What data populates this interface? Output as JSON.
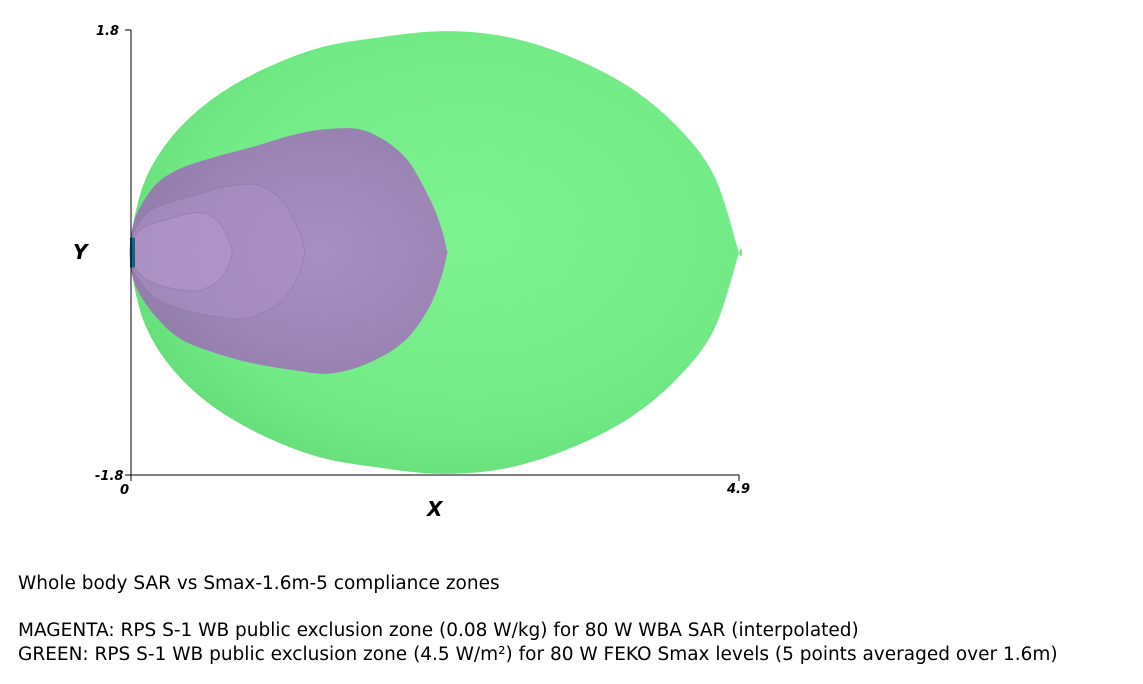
{
  "chart_data": {
    "type": "area",
    "title": "",
    "xlabel": "X",
    "ylabel": "Y",
    "xlim": [
      0,
      4.9
    ],
    "ylim": [
      -1.8,
      1.8
    ],
    "x_tick_labels": [
      "0",
      "4.9"
    ],
    "y_tick_labels": [
      "1.8",
      "-1.8"
    ],
    "grid": false,
    "colors": {
      "green": "#76ee88",
      "green_dark": "#3fae4f",
      "magenta": "#9c85b5",
      "magenta_light": "#ae92c8",
      "source": "#1b5f7a"
    },
    "series": [
      {
        "name": "GREEN",
        "x_range": [
          0,
          4.9
        ],
        "x": [
          0,
          0.1,
          0.3,
          0.6,
          1.0,
          1.5,
          2.0,
          2.5,
          3.0,
          3.5,
          4.0,
          4.4,
          4.7,
          4.9
        ],
        "upper": [
          0.12,
          0.55,
          0.9,
          1.2,
          1.45,
          1.65,
          1.74,
          1.79,
          1.75,
          1.6,
          1.35,
          1.02,
          0.62,
          0.0
        ],
        "lower": [
          -0.12,
          -0.55,
          -0.9,
          -1.2,
          -1.45,
          -1.65,
          -1.74,
          -1.79,
          -1.75,
          -1.6,
          -1.35,
          -1.02,
          -0.62,
          0.0
        ]
      },
      {
        "name": "MAGENTA",
        "x_range": [
          0,
          2.55
        ],
        "x": [
          0,
          0.05,
          0.2,
          0.4,
          0.7,
          1.0,
          1.3,
          1.6,
          1.9,
          2.2,
          2.4,
          2.5,
          2.55
        ],
        "upper": [
          0.12,
          0.32,
          0.55,
          0.68,
          0.78,
          0.86,
          0.95,
          1.0,
          0.98,
          0.78,
          0.45,
          0.2,
          0.0
        ],
        "lower": [
          -0.12,
          -0.3,
          -0.52,
          -0.7,
          -0.82,
          -0.9,
          -0.95,
          -0.98,
          -0.9,
          -0.72,
          -0.45,
          -0.2,
          0.0
        ]
      }
    ]
  },
  "captions": {
    "title": "Whole body SAR vs Smax-1.6m-5 compliance zones",
    "magenta": "MAGENTA: RPS S-1 WB public exclusion zone (0.08 W/kg) for 80 W WBA SAR (interpolated)",
    "green": "GREEN: RPS S-1 WB public exclusion zone (4.5 W/m²) for 80 W FEKO Smax levels (5 points averaged over 1.6m)"
  }
}
